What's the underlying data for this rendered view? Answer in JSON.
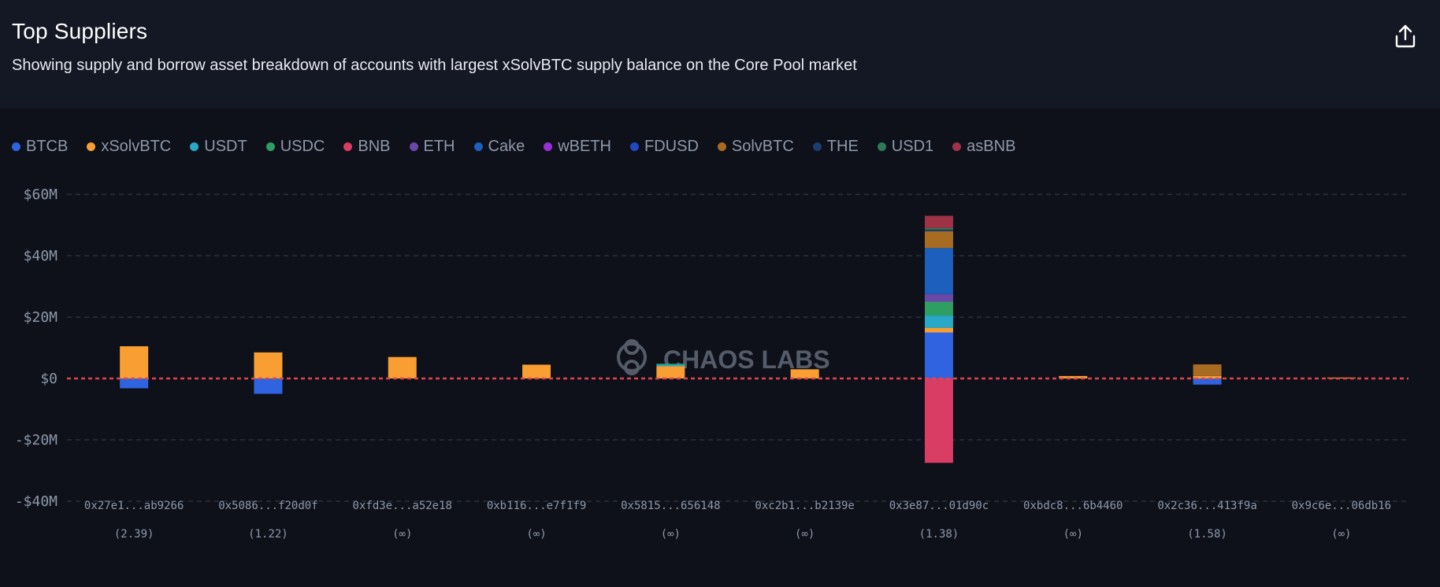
{
  "header": {
    "title": "Top Suppliers",
    "subtitle": "Showing supply and borrow asset breakdown of accounts with largest xSolvBTC supply balance on the Core Pool market"
  },
  "icons": {
    "export": "export-share-icon",
    "watermark": "chaos-labs-logo-icon"
  },
  "watermark": {
    "text": "CHAOS LABS"
  },
  "colors": {
    "background": "#0e1119",
    "header_background": "#141824",
    "grid": "#3a404d",
    "zero_line": "#e0454f",
    "tick_text": "#8e98ab"
  },
  "chart_data": {
    "type": "bar",
    "stacked": true,
    "ylim": [
      -40,
      60
    ],
    "yunit": "$M",
    "y_ticks": [
      {
        "value": 60,
        "label": "$60M"
      },
      {
        "value": 40,
        "label": "$40M"
      },
      {
        "value": 20,
        "label": "$20M"
      },
      {
        "value": 0,
        "label": "$0"
      },
      {
        "value": -20,
        "label": "-$20M"
      },
      {
        "value": -40,
        "label": "-$40M"
      }
    ],
    "grid": true,
    "legend_position": "top-left",
    "categories": [
      "0x27e1...ab9266",
      "0x5086...f20d0f",
      "0xfd3e...a52e18",
      "0xb116...e7f1f9",
      "0x5815...656148",
      "0xc2b1...b2139e",
      "0x3e87...01d90c",
      "0xbdc8...6b4460",
      "0x2c36...413f9a",
      "0x9c6e...06db16"
    ],
    "category_sublabels": [
      "(2.39)",
      "(1.22)",
      "(∞)",
      "(∞)",
      "(∞)",
      "(∞)",
      "(1.38)",
      "(∞)",
      "(1.58)",
      "(∞)"
    ],
    "series": [
      {
        "name": "BTCB",
        "color": "#2f63e0",
        "values": [
          -3.2,
          -5.0,
          0,
          0,
          0,
          0,
          15.0,
          0,
          -2.0,
          0
        ]
      },
      {
        "name": "xSolvBTC",
        "color": "#f99e33",
        "values": [
          10.5,
          8.5,
          7.0,
          4.5,
          4.0,
          3.0,
          1.5,
          0.8,
          0.8,
          0.3
        ]
      },
      {
        "name": "USDT",
        "color": "#2aa8c8",
        "values": [
          0,
          0,
          0,
          0,
          0.5,
          0,
          4.0,
          0,
          0,
          0
        ]
      },
      {
        "name": "USDC",
        "color": "#2f9e63",
        "values": [
          0,
          0,
          0,
          0,
          0.3,
          0,
          4.5,
          0,
          0,
          0
        ]
      },
      {
        "name": "BNB",
        "color": "#d93d63",
        "values": [
          0,
          0,
          0,
          0,
          0,
          0,
          -27.5,
          0,
          0,
          0
        ]
      },
      {
        "name": "ETH",
        "color": "#6b47a8",
        "values": [
          0,
          0,
          0,
          0,
          0,
          0,
          2.5,
          0,
          0,
          0
        ]
      },
      {
        "name": "Cake",
        "color": "#1c5fbd",
        "values": [
          0,
          0,
          0,
          0,
          0,
          0,
          15.0,
          0,
          0,
          0
        ]
      },
      {
        "name": "wBETH",
        "color": "#9b2fd6",
        "values": [
          0,
          0,
          0,
          0,
          0,
          0,
          0,
          0,
          0,
          0
        ]
      },
      {
        "name": "FDUSD",
        "color": "#2148c4",
        "values": [
          0,
          0,
          0,
          0,
          0,
          0,
          0,
          0,
          0,
          0
        ]
      },
      {
        "name": "SolvBTC",
        "color": "#a86b22",
        "values": [
          0,
          0,
          0,
          0,
          0,
          0,
          5.5,
          0,
          3.8,
          0
        ]
      },
      {
        "name": "THE",
        "color": "#1d3d6e",
        "values": [
          0,
          0,
          0,
          0,
          0,
          0,
          0.5,
          0,
          0,
          0
        ]
      },
      {
        "name": "USD1",
        "color": "#2d7a55",
        "values": [
          0,
          0,
          0,
          0,
          0,
          0,
          0.5,
          0,
          0,
          0
        ]
      },
      {
        "name": "asBNB",
        "color": "#9e3346",
        "values": [
          0,
          0,
          0,
          0,
          0,
          0,
          4.0,
          0,
          0,
          0
        ]
      }
    ]
  }
}
